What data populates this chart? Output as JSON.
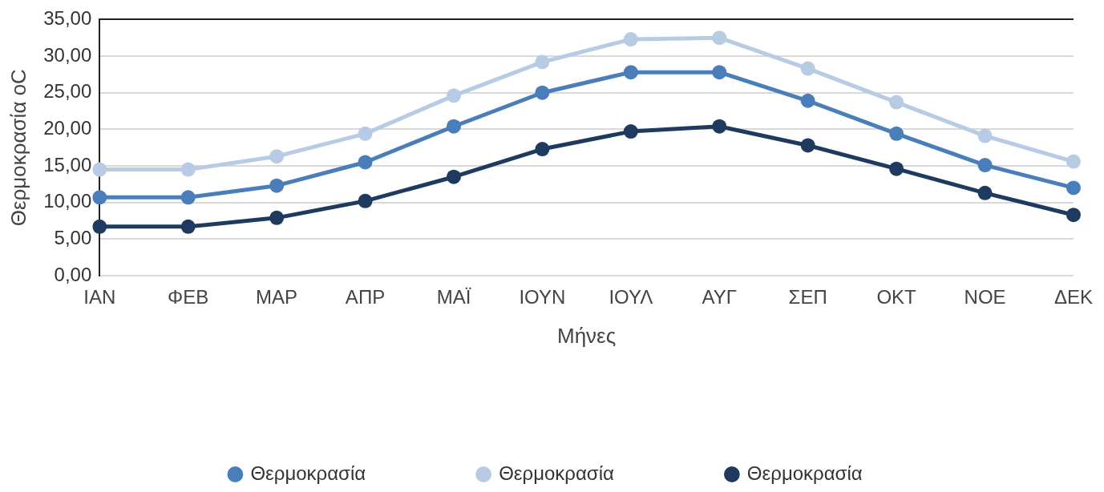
{
  "chart_data": {
    "type": "line",
    "xlabel": "Μήνες",
    "ylabel": "Θερμοκρασία oC",
    "categories": [
      "ΙΑΝ",
      "ΦΕΒ",
      "ΜΑΡ",
      "ΑΠΡ",
      "ΜΑΪ",
      "ΙΟΥΝ",
      "ΙΟΥΛ",
      "ΑΥΓ",
      "ΣΕΠ",
      "ΟΚΤ",
      "ΝΟΕ",
      "ΔΕΚ"
    ],
    "series": [
      {
        "name": "Θερμοκρασία",
        "color": "#4a7ebb",
        "values": [
          10.7,
          10.7,
          12.3,
          15.5,
          20.4,
          25.0,
          27.8,
          27.8,
          23.9,
          19.4,
          15.1,
          12.0
        ]
      },
      {
        "name": "Θερμοκρασία",
        "color": "#b7cce4",
        "values": [
          14.5,
          14.5,
          16.3,
          19.4,
          24.6,
          29.2,
          32.3,
          32.5,
          28.3,
          23.7,
          19.1,
          15.6
        ]
      },
      {
        "name": "Θερμοκρασία",
        "color": "#1f3a5f",
        "values": [
          6.7,
          6.7,
          7.9,
          10.2,
          13.5,
          17.3,
          19.7,
          20.4,
          17.8,
          14.6,
          11.3,
          8.3
        ]
      }
    ],
    "ylim": [
      0,
      35
    ],
    "yticks": [
      {
        "value": 0,
        "label": "0,00"
      },
      {
        "value": 5,
        "label": "5,00"
      },
      {
        "value": 10,
        "label": "10,00"
      },
      {
        "value": 15,
        "label": "15,00"
      },
      {
        "value": 20,
        "label": "20,00"
      },
      {
        "value": 25,
        "label": "25,00"
      },
      {
        "value": 30,
        "label": "30,00"
      },
      {
        "value": 35,
        "label": "35,00"
      }
    ],
    "grid": "y",
    "legend": "bottom",
    "marker": "circle",
    "line_style": "solid"
  }
}
